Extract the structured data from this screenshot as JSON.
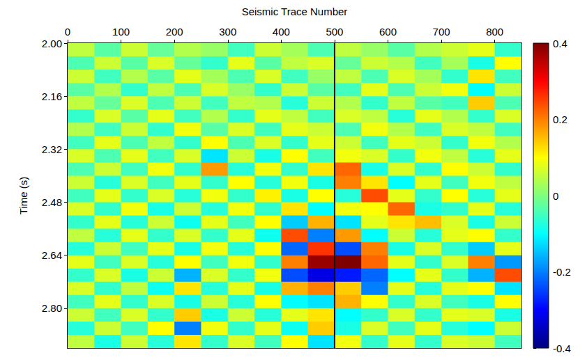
{
  "chart_data": {
    "type": "heatmap",
    "x_label": "Seismic Trace Number",
    "y_label": "Time (s)",
    "xlim": [
      0,
      850
    ],
    "xticks": [
      0,
      100,
      200,
      300,
      400,
      500,
      600,
      700,
      800
    ],
    "ylim": [
      2.0,
      2.92
    ],
    "yticks": [
      {
        "value": 2.0,
        "label": "2.00"
      },
      2.16,
      2.32,
      2.48,
      2.64,
      {
        "value": 2.8,
        "label": "2.80"
      }
    ],
    "x_bins": [
      0,
      50,
      100,
      150,
      200,
      250,
      300,
      350,
      400,
      450,
      500,
      550,
      600,
      650,
      700,
      750,
      800,
      850
    ],
    "y_bins": [
      2.0,
      2.04,
      2.08,
      2.12,
      2.16,
      2.2,
      2.24,
      2.28,
      2.32,
      2.36,
      2.4,
      2.44,
      2.48,
      2.52,
      2.56,
      2.6,
      2.64,
      2.68,
      2.72,
      2.76,
      2.8,
      2.84,
      2.88,
      2.92
    ],
    "values": [
      [
        0.05,
        -0.03,
        0.06,
        -0.02,
        0.04,
        0.02,
        -0.05,
        0.06,
        0.03,
        -0.04,
        0.05,
        0.02,
        -0.03,
        0.04,
        0.06,
        0.08,
        -0.06
      ],
      [
        -0.04,
        0.06,
        -0.03,
        0.07,
        -0.02,
        -0.06,
        0.08,
        -0.03,
        0.05,
        0.07,
        -0.02,
        0.06,
        0.04,
        -0.05,
        0.03,
        -0.08,
        0.1
      ],
      [
        0.06,
        -0.05,
        0.04,
        -0.03,
        0.08,
        0.03,
        -0.04,
        0.07,
        -0.05,
        0.02,
        0.05,
        -0.04,
        0.07,
        0.03,
        -0.06,
        0.12,
        -0.05
      ],
      [
        -0.03,
        0.04,
        -0.06,
        0.05,
        -0.04,
        0.07,
        0.02,
        -0.06,
        0.06,
        -0.03,
        -0.05,
        0.08,
        -0.04,
        0.06,
        0.09,
        -0.1,
        0.06
      ],
      [
        0.05,
        -0.02,
        0.07,
        -0.04,
        0.06,
        -0.05,
        0.05,
        0.04,
        -0.07,
        0.06,
        0.04,
        -0.06,
        0.05,
        -0.03,
        -0.05,
        0.14,
        -0.04
      ],
      [
        -0.06,
        0.07,
        -0.03,
        0.08,
        -0.05,
        0.04,
        -0.06,
        0.08,
        0.05,
        -0.05,
        0.07,
        0.05,
        -0.07,
        0.08,
        0.04,
        -0.06,
        0.07
      ],
      [
        0.04,
        -0.05,
        0.06,
        -0.06,
        0.09,
        -0.03,
        0.07,
        -0.05,
        0.08,
        0.06,
        -0.04,
        0.09,
        0.04,
        -0.05,
        0.07,
        0.05,
        -0.05
      ],
      [
        -0.05,
        0.08,
        -0.04,
        0.05,
        -0.06,
        0.1,
        -0.04,
        0.07,
        -0.06,
        0.08,
        0.06,
        -0.05,
        0.08,
        0.06,
        -0.06,
        0.09,
        0.04
      ],
      [
        0.07,
        -0.04,
        0.08,
        -0.05,
        0.07,
        -0.12,
        0.06,
        -0.08,
        0.1,
        -0.05,
        0.09,
        0.07,
        -0.06,
        0.09,
        0.05,
        -0.07,
        0.08
      ],
      [
        -0.04,
        0.06,
        -0.05,
        0.09,
        -0.06,
        0.18,
        -0.07,
        0.09,
        -0.06,
        0.12,
        0.22,
        -0.08,
        0.07,
        -0.06,
        0.1,
        0.06,
        -0.06
      ],
      [
        0.06,
        -0.07,
        0.07,
        -0.05,
        0.08,
        -0.06,
        0.1,
        -0.07,
        0.09,
        -0.08,
        0.2,
        0.12,
        -0.1,
        0.08,
        -0.05,
        0.09,
        0.05
      ],
      [
        -0.05,
        0.08,
        -0.06,
        0.07,
        -0.07,
        0.09,
        -0.06,
        0.11,
        -0.08,
        0.1,
        -0.07,
        0.24,
        0.08,
        -0.06,
        0.1,
        -0.07,
        0.08
      ],
      [
        0.07,
        -0.06,
        0.09,
        -0.08,
        0.06,
        -0.07,
        0.09,
        -0.06,
        0.12,
        -0.1,
        0.09,
        0.1,
        0.22,
        -0.08,
        -0.06,
        0.08,
        -0.07
      ],
      [
        -0.06,
        0.08,
        -0.07,
        0.06,
        -0.09,
        0.08,
        -0.05,
        0.1,
        -0.14,
        0.16,
        -0.12,
        0.08,
        0.12,
        0.15,
        0.07,
        -0.08,
        0.06
      ],
      [
        0.05,
        -0.07,
        0.08,
        -0.06,
        0.07,
        -0.06,
        0.08,
        -0.09,
        0.24,
        -0.2,
        0.18,
        -0.1,
        0.06,
        -0.07,
        0.08,
        0.1,
        -0.06
      ],
      [
        -0.07,
        0.06,
        -0.05,
        0.08,
        -0.08,
        0.09,
        -0.07,
        0.1,
        -0.22,
        0.26,
        -0.24,
        0.2,
        -0.08,
        0.07,
        -0.06,
        -0.14,
        0.08
      ],
      [
        0.08,
        -0.05,
        0.07,
        -0.07,
        0.1,
        -0.05,
        0.09,
        -0.06,
        0.2,
        0.38,
        0.4,
        0.22,
        0.08,
        -0.06,
        0.07,
        0.2,
        -0.18
      ],
      [
        -0.06,
        0.07,
        -0.08,
        0.06,
        -0.16,
        0.07,
        -0.06,
        0.09,
        -0.24,
        -0.32,
        -0.28,
        -0.22,
        -0.1,
        0.08,
        -0.06,
        -0.16,
        0.24
      ],
      [
        0.07,
        -0.06,
        0.05,
        -0.09,
        0.12,
        -0.07,
        0.08,
        -0.08,
        0.16,
        0.2,
        0.14,
        -0.2,
        0.08,
        -0.07,
        0.08,
        0.1,
        -0.12
      ],
      [
        -0.05,
        0.08,
        -0.06,
        0.07,
        -0.08,
        0.06,
        -0.07,
        0.1,
        -0.1,
        -0.12,
        0.16,
        0.1,
        -0.06,
        0.07,
        -0.05,
        -0.08,
        0.1
      ],
      [
        0.06,
        -0.05,
        0.07,
        -0.06,
        0.14,
        -0.08,
        0.06,
        -0.07,
        0.08,
        0.12,
        -0.1,
        -0.06,
        0.07,
        -0.06,
        0.08,
        0.07,
        -0.08
      ],
      [
        -0.07,
        0.06,
        -0.05,
        0.1,
        -0.2,
        0.09,
        -0.06,
        0.08,
        -0.09,
        0.14,
        -0.08,
        0.07,
        -0.05,
        0.08,
        -0.07,
        -0.1,
        0.06
      ],
      [
        0.05,
        -0.08,
        0.06,
        -0.07,
        0.12,
        -0.06,
        0.07,
        -0.05,
        0.1,
        -0.12,
        0.09,
        -0.06,
        0.08,
        -0.06,
        0.07,
        0.06,
        -0.05
      ]
    ],
    "colorbar_range": [
      -0.4,
      0.4
    ],
    "colorbar_ticks": [
      -0.4,
      -0.2,
      0,
      0.2,
      0.4
    ],
    "line_x": 500
  }
}
